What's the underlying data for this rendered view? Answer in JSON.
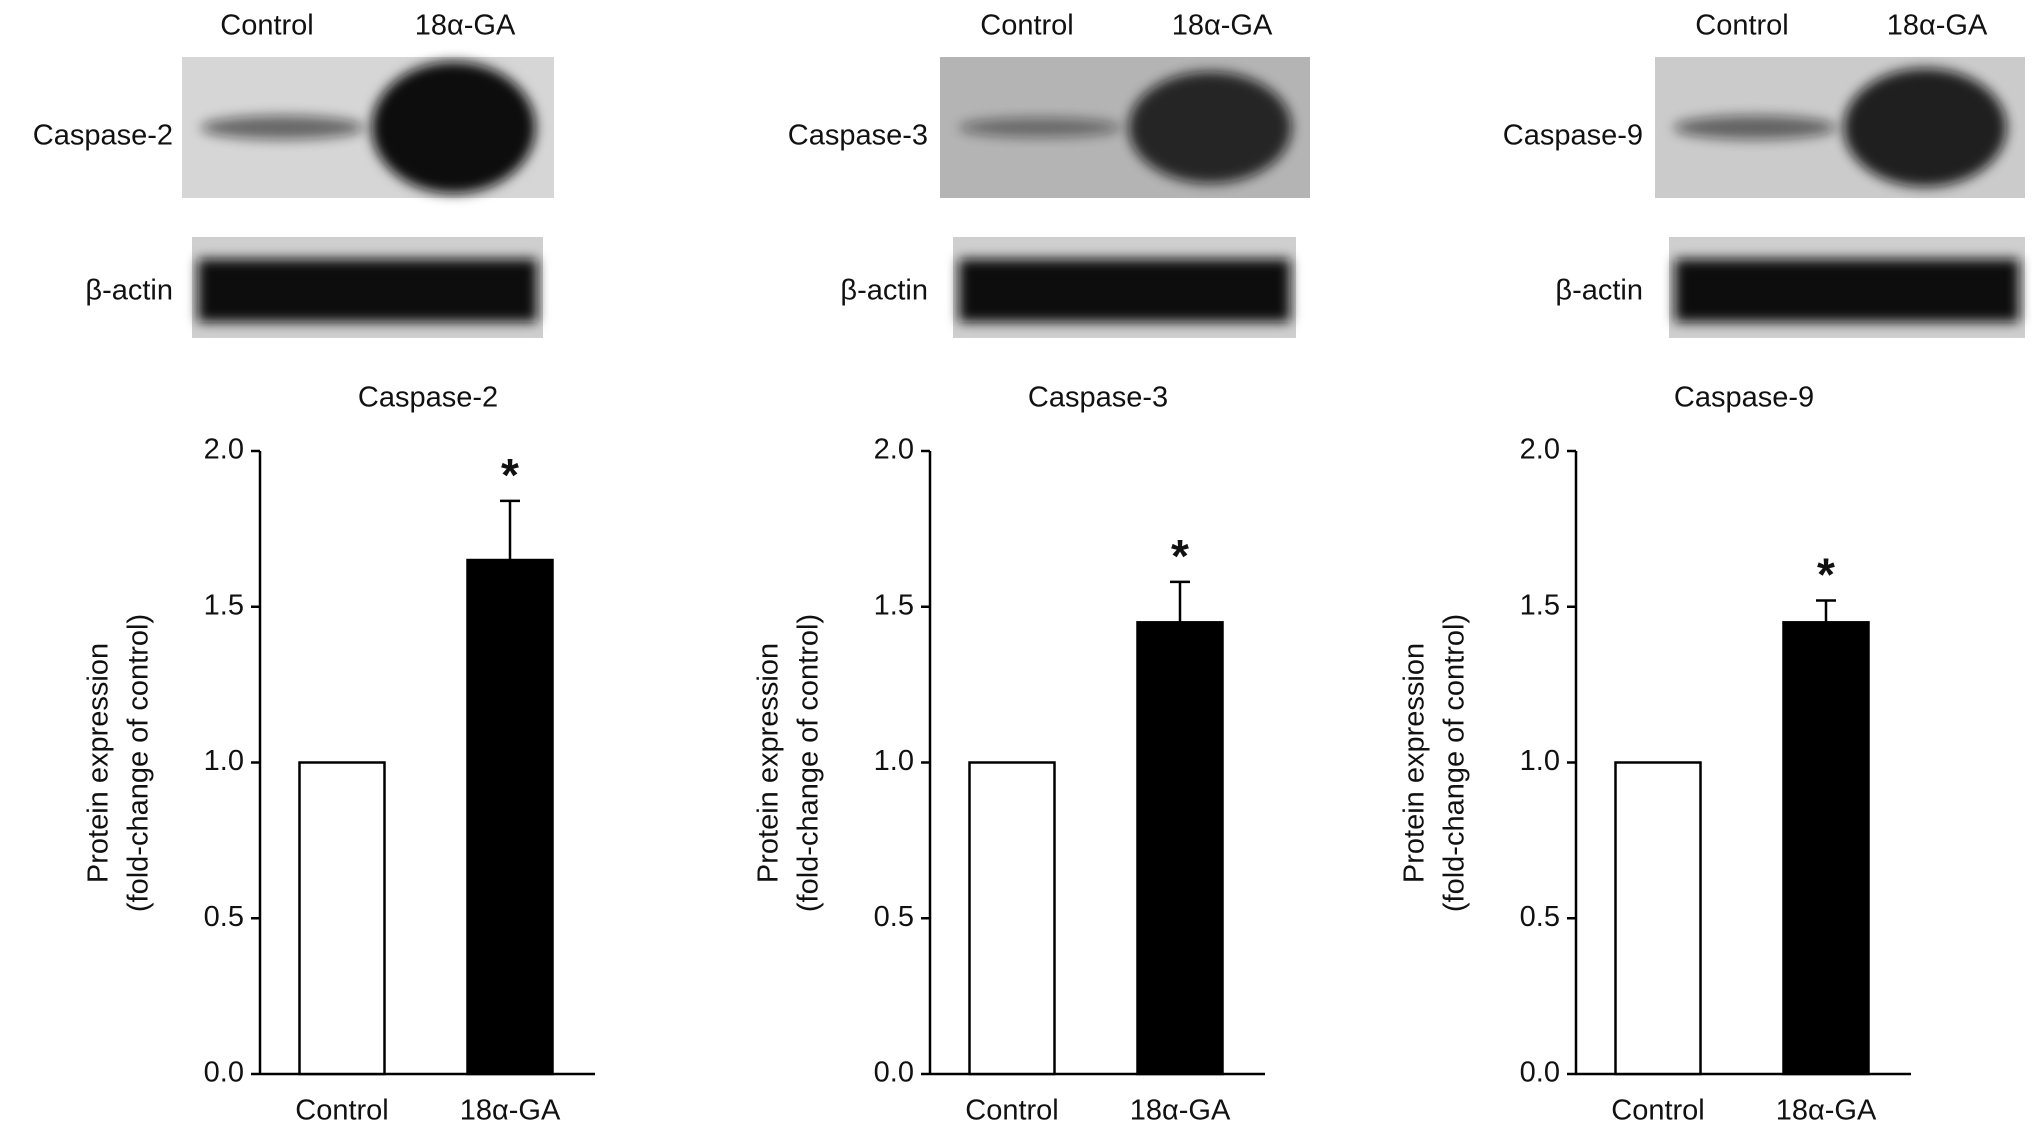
{
  "chart_data": [
    {
      "type": "bar",
      "title": "Caspase-2",
      "blot": {
        "lanes": [
          "Control",
          "18α-GA"
        ],
        "rows": [
          "Caspase-2",
          "β-actin"
        ]
      },
      "categories": [
        "Control",
        "18α-GA"
      ],
      "values": [
        1.0,
        1.65
      ],
      "errors": [
        null,
        0.19
      ],
      "colors": [
        "#ffffff",
        "#000000"
      ],
      "annotation": "*",
      "ylabel": [
        "Protein expression",
        "(fold-change of control)"
      ],
      "ylim": [
        0,
        2
      ],
      "yticks": [
        {
          "value": 0,
          "label": "0.0"
        },
        0.5,
        {
          "value": 1,
          "label": "1.0"
        },
        1.5,
        {
          "value": 2,
          "label": "2.0"
        }
      ]
    },
    {
      "type": "bar",
      "title": "Caspase-3",
      "blot": {
        "lanes": [
          "Control",
          "18α-GA"
        ],
        "rows": [
          "Caspase-3",
          "β-actin"
        ]
      },
      "categories": [
        "Control",
        "18α-GA"
      ],
      "values": [
        1.0,
        1.45
      ],
      "errors": [
        null,
        0.13
      ],
      "colors": [
        "#ffffff",
        "#000000"
      ],
      "annotation": "*",
      "ylabel": [
        "Protein expression",
        "(fold-change of control)"
      ],
      "ylim": [
        0,
        2
      ],
      "yticks": [
        {
          "value": 0,
          "label": "0.0"
        },
        0.5,
        {
          "value": 1,
          "label": "1.0"
        },
        1.5,
        {
          "value": 2,
          "label": "2.0"
        }
      ]
    },
    {
      "type": "bar",
      "title": "Caspase-9",
      "blot": {
        "lanes": [
          "Control",
          "18α-GA"
        ],
        "rows": [
          "Caspase-9",
          "β-actin"
        ]
      },
      "categories": [
        "Control",
        "18α-GA"
      ],
      "values": [
        1.0,
        1.45
      ],
      "errors": [
        null,
        0.07
      ],
      "colors": [
        "#ffffff",
        "#000000"
      ],
      "annotation": "*",
      "ylabel": [
        "Protein expression",
        "(fold-change of control)"
      ],
      "ylim": [
        0,
        2
      ],
      "yticks": [
        {
          "value": 0,
          "label": "0.0"
        },
        0.5,
        {
          "value": 1,
          "label": "1.0"
        },
        1.5,
        {
          "value": 2,
          "label": "2.0"
        }
      ]
    }
  ]
}
